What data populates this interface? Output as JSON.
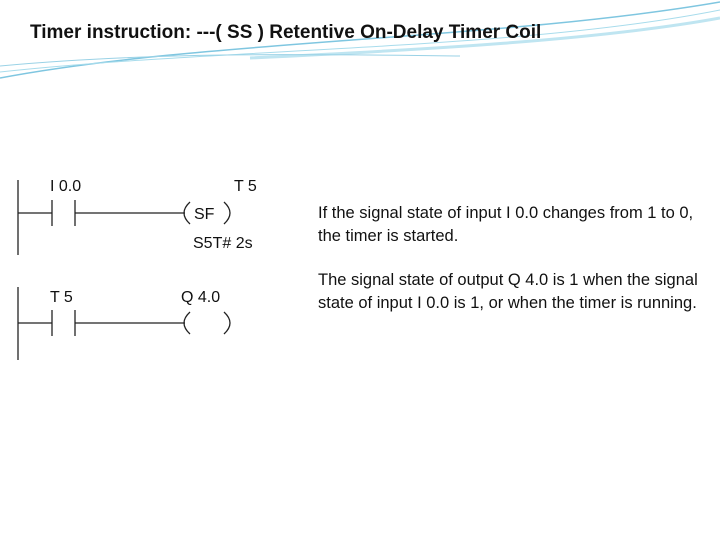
{
  "title": "Timer instruction: ---( SS ) Retentive On-Delay Timer Coil",
  "networks": [
    {
      "contact": "I 0.0",
      "coil_address": "T 5",
      "coil": "SF",
      "preset": "S5T# 2s"
    },
    {
      "contact": "T 5",
      "coil_address": "Q 4.0"
    }
  ],
  "descriptions": [
    "If the signal state of input I 0.0 changes from 1 to 0, the timer is started.",
    "The signal state of output Q 4.0 is 1 when the signal state of input I 0.0 is 1, or when the timer is running."
  ]
}
